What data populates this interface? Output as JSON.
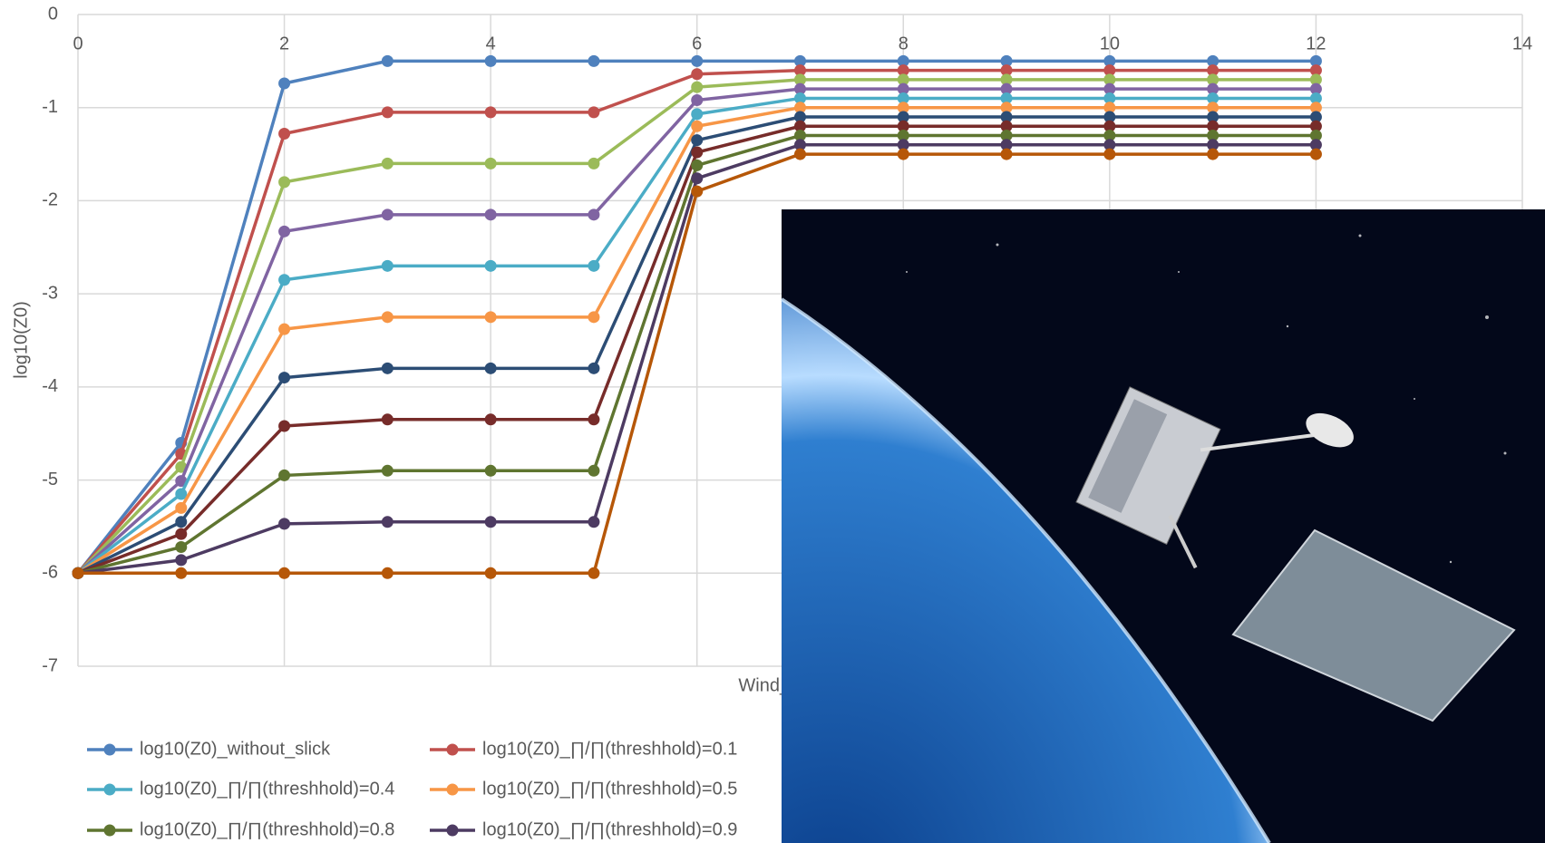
{
  "chart_data": {
    "type": "line",
    "x_label": "Wind_speed",
    "y_label": "log10(Z0)",
    "x": [
      0,
      1,
      2,
      3,
      4,
      5,
      6,
      7,
      8,
      9,
      10,
      11,
      12
    ],
    "xlim": [
      0,
      14
    ],
    "xticks": [
      0,
      2,
      4,
      6,
      8,
      10,
      12,
      14
    ],
    "ylim": [
      -7,
      0
    ],
    "yticks": [
      0,
      -1,
      -2,
      -3,
      -4,
      -5,
      -6,
      -7
    ],
    "grid": true,
    "legend": "bottom",
    "series": [
      {
        "name": "log10(Z0)_without_slick",
        "color": "#4f81bd",
        "values": [
          -6,
          -4.6,
          -0.74,
          -0.5,
          -0.5,
          -0.5,
          -0.5,
          -0.5,
          -0.5,
          -0.5,
          -0.5,
          -0.5,
          -0.5
        ]
      },
      {
        "name": "log10(Z0)_∏/∏(threshhold)=0.1",
        "color": "#c0504d",
        "values": [
          -6,
          -4.72,
          -1.28,
          -1.05,
          -1.05,
          -1.05,
          -0.64,
          -0.6,
          -0.6,
          -0.6,
          -0.6,
          -0.6,
          -0.6
        ]
      },
      {
        "color": "#9bbb59",
        "values": [
          -6,
          -4.86,
          -1.8,
          -1.6,
          -1.6,
          -1.6,
          -0.78,
          -0.7,
          -0.7,
          -0.7,
          -0.7,
          -0.7,
          -0.7
        ]
      },
      {
        "color": "#8064a2",
        "values": [
          -6,
          -5.01,
          -2.33,
          -2.15,
          -2.15,
          -2.15,
          -0.92,
          -0.8,
          -0.8,
          -0.8,
          -0.8,
          -0.8,
          -0.8
        ]
      },
      {
        "name": "log10(Z0)_∏/∏(threshhold)=0.4",
        "color": "#4bacc6",
        "values": [
          -6,
          -5.15,
          -2.85,
          -2.7,
          -2.7,
          -2.7,
          -1.07,
          -0.9,
          -0.9,
          -0.9,
          -0.9,
          -0.9,
          -0.9
        ]
      },
      {
        "name": "log10(Z0)_∏/∏(threshhold)=0.5",
        "color": "#f79646",
        "values": [
          -6,
          -5.3,
          -3.38,
          -3.25,
          -3.25,
          -3.25,
          -1.2,
          -1.0,
          -1.0,
          -1.0,
          -1.0,
          -1.0,
          -1.0
        ]
      },
      {
        "color": "#2c4d75",
        "values": [
          -6,
          -5.45,
          -3.9,
          -3.8,
          -3.8,
          -3.8,
          -1.35,
          -1.1,
          -1.1,
          -1.1,
          -1.1,
          -1.1,
          -1.1
        ]
      },
      {
        "color": "#772c2a",
        "values": [
          -6,
          -5.58,
          -4.42,
          -4.35,
          -4.35,
          -4.35,
          -1.48,
          -1.2,
          -1.2,
          -1.2,
          -1.2,
          -1.2,
          -1.2
        ]
      },
      {
        "name": "log10(Z0)_∏/∏(threshhold)=0.8",
        "color": "#5f7530",
        "values": [
          -6,
          -5.72,
          -4.95,
          -4.9,
          -4.9,
          -4.9,
          -1.62,
          -1.3,
          -1.3,
          -1.3,
          -1.3,
          -1.3,
          -1.3
        ]
      },
      {
        "name": "log10(Z0)_∏/∏(threshhold)=0.9",
        "color": "#4d3b62",
        "values": [
          -6,
          -5.86,
          -5.47,
          -5.45,
          -5.45,
          -5.45,
          -1.76,
          -1.4,
          -1.4,
          -1.4,
          -1.4,
          -1.4,
          -1.4
        ]
      },
      {
        "color": "#b65708",
        "values": [
          -6,
          -6,
          -6,
          -6,
          -6,
          -6,
          -1.9,
          -1.5,
          -1.5,
          -1.5,
          -1.5,
          -1.5,
          -1.5
        ]
      }
    ]
  }
}
